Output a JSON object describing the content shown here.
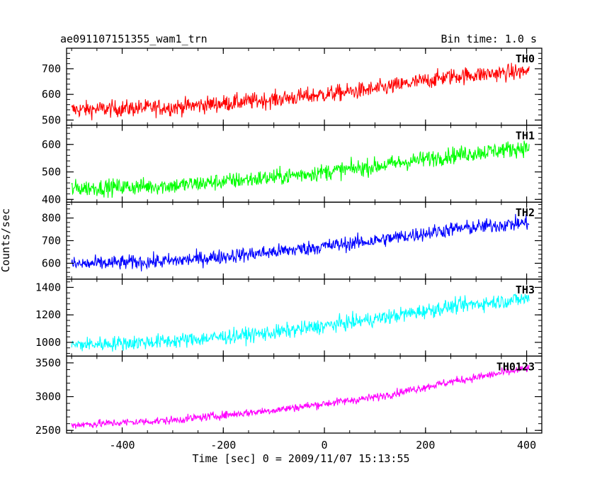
{
  "header": {
    "title": "ae091107151355_wam1_trn",
    "bin_time": "Bin time: 1.0 s"
  },
  "chart_data": {
    "type": "line",
    "title": "ae091107151355_wam1_trn",
    "subtitle": "Bin time: 1.0 s",
    "xlabel": "Time [sec] 0 = 2009/11/07 15:13:55",
    "ylabel": "Counts/sec",
    "xlim": [
      -510,
      430
    ],
    "x_range": [
      -500,
      405
    ],
    "xticks": [
      -400,
      -200,
      0,
      200,
      400
    ],
    "grid": false,
    "panels": [
      {
        "name": "TH0",
        "color": "#ff0000",
        "ylim": [
          480,
          780
        ],
        "yticks": [
          500,
          600,
          700
        ],
        "trend": [
          [
            -500,
            540
          ],
          [
            -300,
            550
          ],
          [
            -100,
            580
          ],
          [
            100,
            620
          ],
          [
            250,
            670
          ],
          [
            405,
            690
          ]
        ],
        "noise": 30
      },
      {
        "name": "TH1",
        "color": "#00ff00",
        "ylim": [
          390,
          670
        ],
        "yticks": [
          400,
          500,
          600
        ],
        "trend": [
          [
            -500,
            440
          ],
          [
            -300,
            450
          ],
          [
            -100,
            480
          ],
          [
            100,
            520
          ],
          [
            250,
            560
          ],
          [
            405,
            590
          ]
        ],
        "noise": 28
      },
      {
        "name": "TH2",
        "color": "#0000ff",
        "ylim": [
          530,
          870
        ],
        "yticks": [
          600,
          700,
          800
        ],
        "trend": [
          [
            -500,
            595
          ],
          [
            -300,
            610
          ],
          [
            -100,
            650
          ],
          [
            100,
            700
          ],
          [
            250,
            750
          ],
          [
            405,
            780
          ]
        ],
        "noise": 30
      },
      {
        "name": "TH3",
        "color": "#00ffff",
        "ylim": [
          900,
          1460
        ],
        "yticks": [
          1000,
          1200,
          1400
        ],
        "trend": [
          [
            -500,
            980
          ],
          [
            -300,
            1010
          ],
          [
            -100,
            1070
          ],
          [
            100,
            1170
          ],
          [
            250,
            1260
          ],
          [
            405,
            1320
          ]
        ],
        "noise": 50
      },
      {
        "name": "TH0123",
        "color": "#ff00ff",
        "ylim": [
          2460,
          3600
        ],
        "yticks": [
          2500,
          3000,
          3500
        ],
        "trend": [
          [
            -500,
            2580
          ],
          [
            -300,
            2650
          ],
          [
            -100,
            2800
          ],
          [
            100,
            2990
          ],
          [
            250,
            3220
          ],
          [
            405,
            3420
          ]
        ],
        "noise": 55
      }
    ]
  }
}
